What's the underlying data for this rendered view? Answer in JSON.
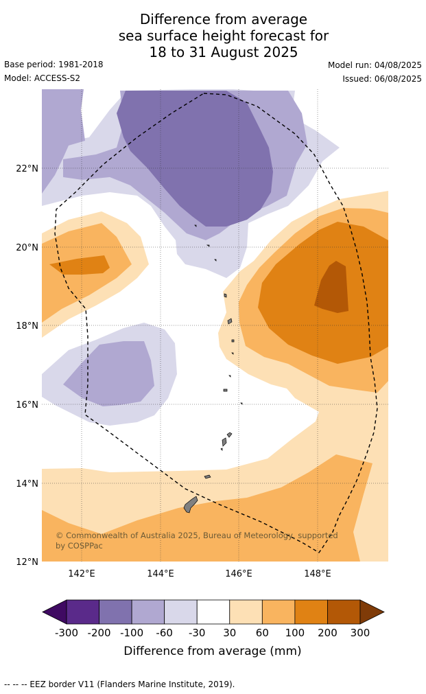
{
  "title_lines": [
    "Difference from average",
    "sea surface height forecast for",
    "18 to 31 August 2025"
  ],
  "meta": {
    "base_period": "Base period: 1981-2018",
    "model": "Model: ACCESS-S2",
    "model_run": "Model run: 04/08/2025",
    "issued": "Issued: 06/08/2025"
  },
  "axes": {
    "lat_labels": [
      "22°N",
      "20°N",
      "18°N",
      "16°N",
      "14°N",
      "12°N"
    ],
    "lon_labels": [
      "142°E",
      "144°E",
      "146°E",
      "148°E"
    ]
  },
  "copyright_lines": [
    "© Commonwealth of Australia 2025, Bureau of Meteorology, supported",
    "by COSPPac"
  ],
  "colorbar": {
    "ticks": [
      "-300",
      "-200",
      "-100",
      "-60",
      "-30",
      "30",
      "60",
      "100",
      "200",
      "300"
    ],
    "colors": [
      "#3f0a62",
      "#5a2a8a",
      "#8072ae",
      "#b0a8d1",
      "#d9d8ea",
      "#ffffff",
      "#fde0b5",
      "#f9b45f",
      "#e08214",
      "#b35806",
      "#7f3b08"
    ],
    "label": "Difference from average (mm)"
  },
  "footer": "--  --  -- EEZ border V11 (Flanders Marine Institute, 2019)."
}
